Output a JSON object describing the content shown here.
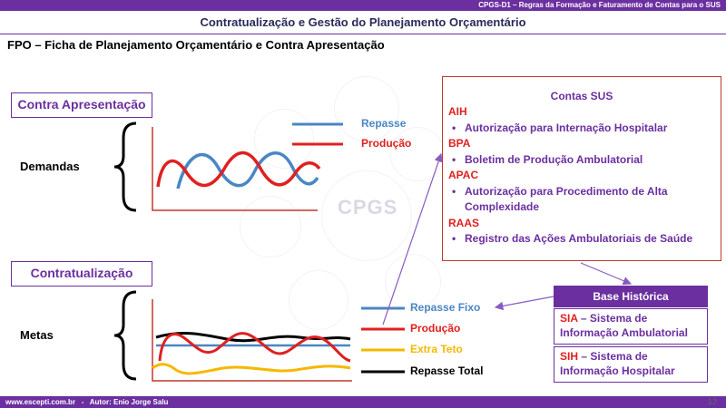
{
  "header": {
    "top_caption": "CPGS-D1 – Regras da Formação e Faturamento de Contas para o SUS",
    "title": "Contratualização e Gestão do Planejamento Orçamentário"
  },
  "subtitle": "FPO – Ficha de Planejamento Orçamentário e Contra Apresentação",
  "watermark_text": "CPGS",
  "contra": {
    "box_label": "Contra Apresentação",
    "row_label": "Demandas",
    "legend": [
      {
        "label": "Repasse",
        "color": "#4a86c5"
      },
      {
        "label": "Produção",
        "color": "#e02020"
      }
    ]
  },
  "contrat": {
    "box_label": "Contratualização",
    "row_label": "Metas",
    "legend": [
      {
        "label": "Repasse Fixo",
        "color": "#4a86c5"
      },
      {
        "label": "Produção",
        "color": "#e02020"
      },
      {
        "label": "Extra Teto",
        "color": "#f5b800"
      },
      {
        "label": "Repasse Total",
        "color": "#000000"
      }
    ]
  },
  "contas_sus": {
    "title": "Contas SUS",
    "items": [
      {
        "code": "AIH",
        "desc": "Autorização para Internação Hospitalar"
      },
      {
        "code": "BPA",
        "desc": "Boletim de Produção Ambulatorial"
      },
      {
        "code": "APAC",
        "desc": "Autorização para Procedimento de Alta Complexidade"
      },
      {
        "code": "RAAS",
        "desc": "Registro das Ações Ambulatoriais de Saúde"
      }
    ]
  },
  "base_historica": {
    "title": "Base Histórica",
    "items": [
      {
        "code": "SIA",
        "desc": "– Sistema de Informação Ambulatorial"
      },
      {
        "code": "SIH",
        "desc": "– Sistema de Informação Hospitalar"
      }
    ]
  },
  "footer": {
    "text": "www.escepti.com.br   -   Autor: Enio Jorge Salu",
    "page": "12"
  },
  "colors": {
    "accent": "#6b2fa0",
    "red": "#e02020",
    "blue": "#4a86c5",
    "yellow": "#f5b800"
  }
}
